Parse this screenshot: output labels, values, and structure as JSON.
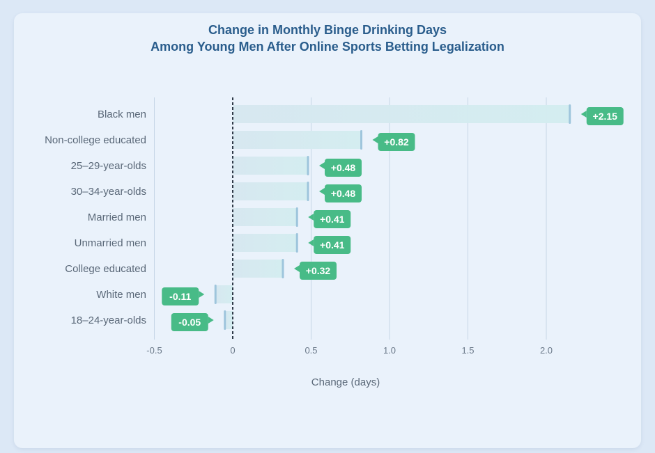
{
  "chart_data": {
    "type": "bar",
    "orientation": "horizontal",
    "title": "Change in Monthly Binge Drinking Days",
    "subtitle": "Among Young Men After Online Sports Betting Legalization",
    "xlabel": "Change (days)",
    "ylabel": "",
    "xlim": [
      -0.5,
      2.5
    ],
    "xticks": [
      "-0.5",
      "0",
      "0.5",
      "1.0",
      "1.5",
      "2.0"
    ],
    "grid": "vertical",
    "reference_line": 0,
    "categories": [
      "Black men",
      "Non-college educated",
      "25–29-year-olds",
      "30–34-year-olds",
      "Married men",
      "Unmarried men",
      "College educated",
      "White men",
      "18–24-year-olds"
    ],
    "values": [
      2.15,
      0.82,
      0.48,
      0.48,
      0.41,
      0.41,
      0.32,
      -0.11,
      -0.05
    ],
    "value_labels": [
      "+2.15",
      "+0.82",
      "+0.48",
      "+0.48",
      "+0.41",
      "+0.41",
      "+0.32",
      "-0.11",
      "-0.05"
    ],
    "colors": {
      "bar": "#cfe5ee",
      "bar_end": "#9ec5dc",
      "label_bg": "#48bb87",
      "grid": "#c6d6e6",
      "zero_line": "#2f3a48"
    }
  }
}
